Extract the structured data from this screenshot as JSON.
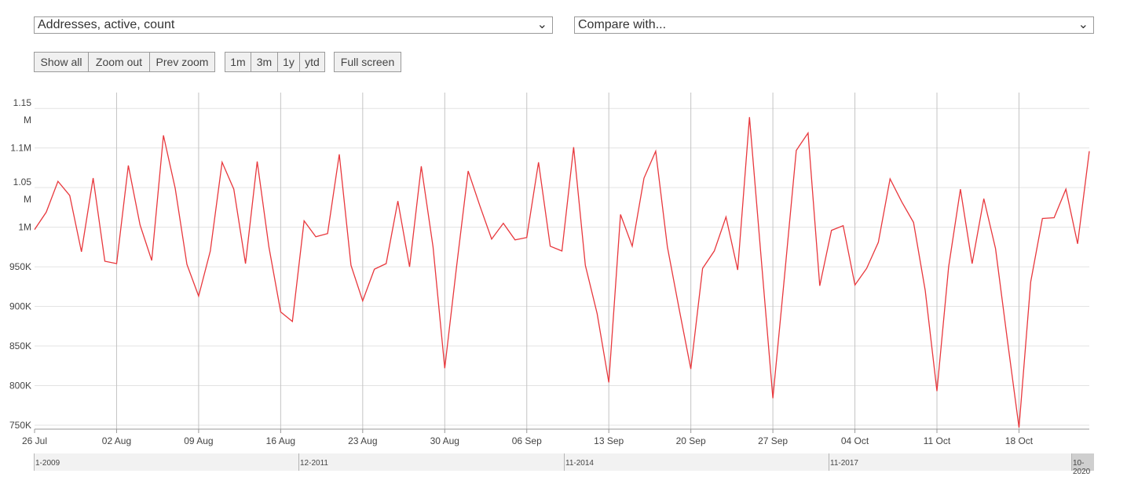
{
  "controls": {
    "metric_select": "Addresses, active, count",
    "compare_select": "Compare with...",
    "chevron": "⌄",
    "zoom_buttons": [
      "Show all",
      "Zoom out",
      "Prev zoom"
    ],
    "range_buttons": [
      "1m",
      "3m",
      "1y",
      "ytd"
    ],
    "fullscreen": "Full screen"
  },
  "chart_data": {
    "type": "line",
    "series_color": "#e8383d",
    "y_ticks": [
      {
        "label": [
          "1.15",
          "M"
        ],
        "value": 1150000
      },
      {
        "label": [
          "1.1M"
        ],
        "value": 1100000
      },
      {
        "label": [
          "1.05",
          "M"
        ],
        "value": 1050000
      },
      {
        "label": [
          "1M"
        ],
        "value": 1000000
      },
      {
        "label": [
          "950K"
        ],
        "value": 950000
      },
      {
        "label": [
          "900K"
        ],
        "value": 900000
      },
      {
        "label": [
          "850K"
        ],
        "value": 850000
      },
      {
        "label": [
          "800K"
        ],
        "value": 800000
      },
      {
        "label": [
          "750K"
        ],
        "value": 750000
      }
    ],
    "ylim": [
      745000,
      1170000
    ],
    "x_range": [
      "2020-07-26",
      "2020-10-24"
    ],
    "x_ticks": [
      {
        "label": "26 Jul",
        "date": "2020-07-26"
      },
      {
        "label": "02 Aug",
        "date": "2020-08-02"
      },
      {
        "label": "09 Aug",
        "date": "2020-08-09"
      },
      {
        "label": "16 Aug",
        "date": "2020-08-16"
      },
      {
        "label": "23 Aug",
        "date": "2020-08-23"
      },
      {
        "label": "30 Aug",
        "date": "2020-08-30"
      },
      {
        "label": "06 Sep",
        "date": "2020-09-06"
      },
      {
        "label": "13 Sep",
        "date": "2020-09-13"
      },
      {
        "label": "20 Sep",
        "date": "2020-09-20"
      },
      {
        "label": "27 Sep",
        "date": "2020-09-27"
      },
      {
        "label": "04 Oct",
        "date": "2020-10-04"
      },
      {
        "label": "11 Oct",
        "date": "2020-10-11"
      },
      {
        "label": "18 Oct",
        "date": "2020-10-18"
      }
    ],
    "x": [
      "2020-07-26",
      "2020-07-27",
      "2020-07-28",
      "2020-07-29",
      "2020-07-30",
      "2020-07-31",
      "2020-08-01",
      "2020-08-02",
      "2020-08-03",
      "2020-08-04",
      "2020-08-05",
      "2020-08-06",
      "2020-08-07",
      "2020-08-08",
      "2020-08-09",
      "2020-08-10",
      "2020-08-11",
      "2020-08-12",
      "2020-08-13",
      "2020-08-14",
      "2020-08-15",
      "2020-08-16",
      "2020-08-17",
      "2020-08-18",
      "2020-08-19",
      "2020-08-20",
      "2020-08-21",
      "2020-08-22",
      "2020-08-23",
      "2020-08-24",
      "2020-08-25",
      "2020-08-26",
      "2020-08-27",
      "2020-08-28",
      "2020-08-29",
      "2020-08-30",
      "2020-08-31",
      "2020-09-01",
      "2020-09-02",
      "2020-09-03",
      "2020-09-04",
      "2020-09-05",
      "2020-09-06",
      "2020-09-07",
      "2020-09-08",
      "2020-09-09",
      "2020-09-10",
      "2020-09-11",
      "2020-09-12",
      "2020-09-13",
      "2020-09-14",
      "2020-09-15",
      "2020-09-16",
      "2020-09-17",
      "2020-09-18",
      "2020-09-19",
      "2020-09-20",
      "2020-09-21",
      "2020-09-22",
      "2020-09-23",
      "2020-09-24",
      "2020-09-25",
      "2020-09-26",
      "2020-09-27",
      "2020-09-28",
      "2020-09-29",
      "2020-09-30",
      "2020-10-01",
      "2020-10-02",
      "2020-10-03",
      "2020-10-04",
      "2020-10-05",
      "2020-10-06",
      "2020-10-07",
      "2020-10-08",
      "2020-10-09",
      "2020-10-10",
      "2020-10-11",
      "2020-10-12",
      "2020-10-13",
      "2020-10-14",
      "2020-10-15",
      "2020-10-16",
      "2020-10-17",
      "2020-10-18",
      "2020-10-19",
      "2020-10-20",
      "2020-10-21",
      "2020-10-22",
      "2020-10-23",
      "2020-10-24"
    ],
    "values": [
      997000,
      1019000,
      1058000,
      1040000,
      969000,
      1062000,
      957000,
      954000,
      1078000,
      1003000,
      958000,
      1116000,
      1049000,
      953000,
      913000,
      970000,
      1082000,
      1048000,
      954000,
      1083000,
      975000,
      893000,
      881000,
      1008000,
      988000,
      992000,
      1092000,
      952000,
      907000,
      947000,
      954000,
      1033000,
      950000,
      1077000,
      975000,
      822000,
      949000,
      1071000,
      1027000,
      985000,
      1005000,
      984000,
      987000,
      1082000,
      976000,
      970000,
      1101000,
      952000,
      891000,
      804000,
      1016000,
      976000,
      1062000,
      1096000,
      975000,
      897000,
      821000,
      948000,
      970000,
      1013000,
      946000,
      1139000,
      961000,
      784000,
      939000,
      1097000,
      1119000,
      926000,
      996000,
      1002000,
      927000,
      948000,
      981000,
      1061000,
      1032000,
      1006000,
      920000,
      793000,
      950000,
      1048000,
      954000,
      1036000,
      973000,
      859000,
      747000,
      931000,
      1011000,
      1012000,
      1048000,
      979000,
      1096000
    ]
  },
  "navigator": {
    "labels": [
      "1-2009",
      "12-2011",
      "11-2014",
      "11-2017",
      "10-2020"
    ]
  }
}
